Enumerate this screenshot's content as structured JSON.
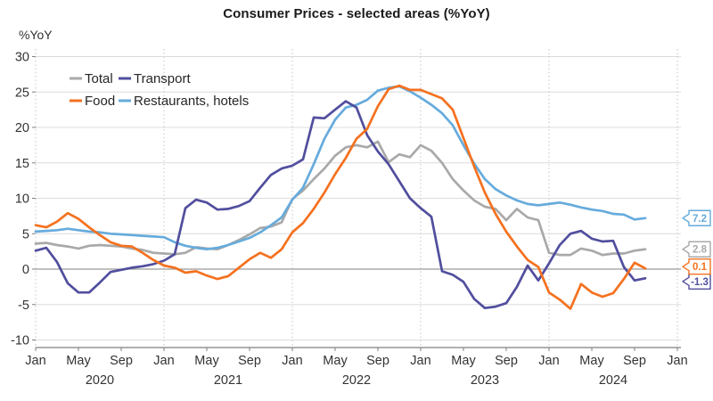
{
  "chart_data": {
    "type": "line",
    "title": "Consumer Prices - selected areas (%YoY)",
    "y_axis": {
      "unit_label": "%YoY",
      "min": -10,
      "max": 30,
      "step": 5,
      "tick_labels": [
        "30",
        "25",
        "20",
        "15",
        "10",
        "5",
        "0",
        "-5",
        "-10"
      ],
      "grid": true
    },
    "x_axis": {
      "start_month": "2020-01",
      "axis_end_month": "2025-01",
      "tick_every_months": 4,
      "month_tick_label_cycle": [
        "Jan",
        "May",
        "Sep"
      ],
      "year_labels": [
        "2020",
        "2021",
        "2022",
        "2023",
        "2024"
      ],
      "jan_gridlines_dotted": true
    },
    "legend_position": "top-left-inside",
    "series": [
      {
        "name": "Total",
        "color": "#a9a9a9",
        "end_label": "2.8",
        "values": [
          3.6,
          3.7,
          3.4,
          3.2,
          2.9,
          3.3,
          3.4,
          3.3,
          3.2,
          2.9,
          2.7,
          2.3,
          2.2,
          2.1,
          2.3,
          3.1,
          2.9,
          2.8,
          3.4,
          4.1,
          4.9,
          5.8,
          6.0,
          6.6,
          9.9,
          11.1,
          12.7,
          14.2,
          16.0,
          17.2,
          17.5,
          17.2,
          18.0,
          15.1,
          16.2,
          15.8,
          17.5,
          16.7,
          15.0,
          12.7,
          11.1,
          9.7,
          8.8,
          8.5,
          6.9,
          8.5,
          7.3,
          6.9,
          2.3,
          2.0,
          2.0,
          2.9,
          2.6,
          2.0,
          2.2,
          2.2,
          2.6,
          2.8
        ]
      },
      {
        "name": "Transport",
        "color": "#514e9e",
        "end_label": "-1.3",
        "values": [
          2.6,
          3.0,
          1.0,
          -2.0,
          -3.3,
          -3.3,
          -1.9,
          -0.4,
          -0.1,
          0.2,
          0.4,
          0.7,
          1.2,
          2.1,
          8.6,
          9.8,
          9.4,
          8.4,
          8.5,
          8.9,
          9.6,
          11.5,
          13.3,
          14.2,
          14.6,
          15.5,
          21.4,
          21.3,
          22.5,
          23.7,
          22.8,
          18.9,
          16.6,
          14.8,
          12.4,
          10.0,
          8.6,
          7.4,
          -0.3,
          -0.8,
          -1.8,
          -4.2,
          -5.5,
          -5.3,
          -4.8,
          -2.5,
          0.5,
          -1.6,
          0.8,
          3.4,
          5.0,
          5.4,
          4.3,
          3.9,
          4.0,
          0.3,
          -1.6,
          -1.3
        ]
      },
      {
        "name": "Food",
        "color": "#f4711f",
        "end_label": "0.1",
        "values": [
          6.2,
          5.9,
          6.7,
          7.9,
          7.1,
          5.9,
          4.8,
          3.8,
          3.3,
          3.2,
          2.3,
          1.3,
          0.5,
          0.2,
          -0.5,
          -0.3,
          -0.9,
          -1.4,
          -1.0,
          0.2,
          1.4,
          2.3,
          1.6,
          2.8,
          5.2,
          6.5,
          8.5,
          10.8,
          13.4,
          15.7,
          18.4,
          19.8,
          23.0,
          25.4,
          25.9,
          25.3,
          25.3,
          24.7,
          24.1,
          22.5,
          18.5,
          14.5,
          10.8,
          7.8,
          5.3,
          3.2,
          1.3,
          0.3,
          -3.3,
          -4.3,
          -5.6,
          -2.1,
          -3.3,
          -3.9,
          -3.4,
          -1.4,
          0.9,
          0.1
        ]
      },
      {
        "name": "Restaurants, hotels",
        "color": "#66abdc",
        "end_label": "7.2",
        "values": [
          5.3,
          5.4,
          5.5,
          5.7,
          5.5,
          5.3,
          5.2,
          5.0,
          4.9,
          4.8,
          4.7,
          4.6,
          4.5,
          3.8,
          3.3,
          3.0,
          2.8,
          3.0,
          3.4,
          3.9,
          4.4,
          5.2,
          6.2,
          7.3,
          9.8,
          11.5,
          14.8,
          18.4,
          21.1,
          22.8,
          23.2,
          23.9,
          25.2,
          25.6,
          25.8,
          25.1,
          24.2,
          23.2,
          22.0,
          20.3,
          17.5,
          14.9,
          12.7,
          11.3,
          10.4,
          9.7,
          9.2,
          9.0,
          9.2,
          9.4,
          9.1,
          8.7,
          8.4,
          8.2,
          7.8,
          7.7,
          7.0,
          7.2
        ]
      }
    ]
  },
  "colors": {
    "background": "#ffffff",
    "gridline": "#dcdcdc",
    "zero_line": "#9a9a9a",
    "dotted_gridline": "#c4c4c4",
    "axis_line": "#7f7f7f",
    "tick_text": "#333333",
    "legend_text": "#262626",
    "title_text": "#1a1a1a"
  }
}
